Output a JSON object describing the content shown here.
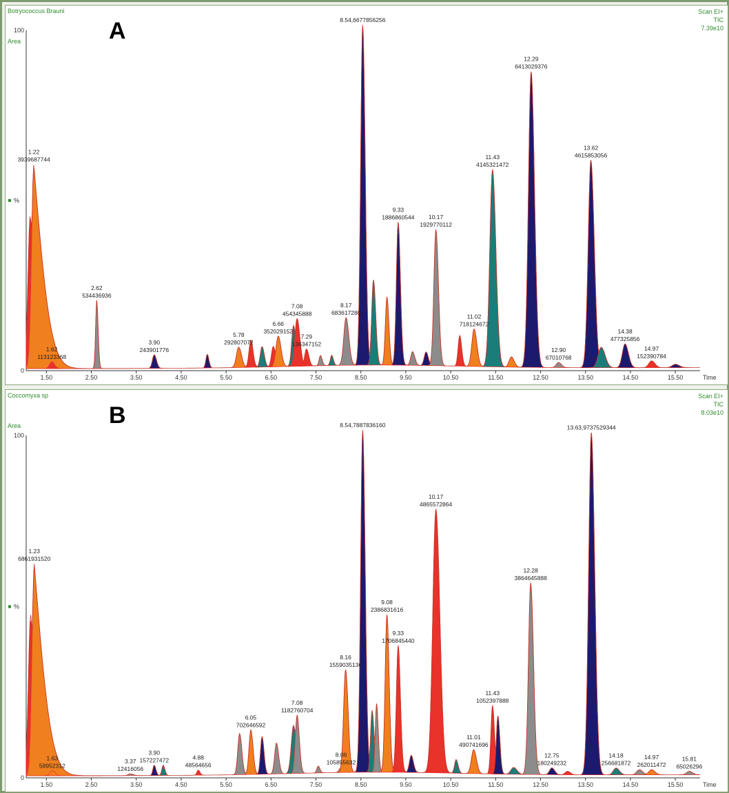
{
  "chart_data": [
    {
      "type": "chromatogram",
      "panel_letter": "A",
      "sample": "Botryococcus Brauni",
      "area_label": "Area",
      "scan_mode": "Scan EI+",
      "trace": "TIC",
      "max_intensity": "7.39e10",
      "xlabel": "Time",
      "ylabel": "%",
      "ytick_top": "100",
      "ytick_bottom": "0",
      "xlim": [
        1.05,
        16.05
      ],
      "ylim": [
        0,
        100
      ],
      "xticks": [
        "1.50",
        "2.50",
        "3.50",
        "4.50",
        "5.50",
        "6.50",
        "7.50",
        "8.50",
        "9.50",
        "10.50",
        "11.50",
        "12.50",
        "13.50",
        "14.50",
        "15.50"
      ],
      "peaks": [
        {
          "rt": 1.14,
          "h": 45,
          "w": 0.05,
          "color": "#e8322a",
          "tail": 0.35
        },
        {
          "rt": 1.22,
          "h": 60,
          "w": 0.05,
          "color": "#f07f1e",
          "tail": 0.38,
          "labels": [
            "1.22",
            "3939687744"
          ]
        },
        {
          "rt": 1.62,
          "h": 2,
          "w": 0.05,
          "color": "#e8322a",
          "labels": [
            "1.62",
            "113123368"
          ]
        },
        {
          "rt": 2.62,
          "h": 20,
          "w": 0.025,
          "color": "#8c8c8c",
          "labels": [
            "2.62",
            "534436936"
          ]
        },
        {
          "rt": 3.9,
          "h": 4,
          "w": 0.04,
          "color": "#1c1a6e",
          "labels": [
            "3.90",
            "243901776"
          ]
        },
        {
          "rt": 5.08,
          "h": 4,
          "w": 0.03,
          "color": "#1c1a6e"
        },
        {
          "rt": 5.78,
          "h": 6,
          "w": 0.05,
          "color": "#f07f1e",
          "labels": [
            "5.78",
            "292807072"
          ]
        },
        {
          "rt": 6.05,
          "h": 8,
          "w": 0.04,
          "color": "#e8322a"
        },
        {
          "rt": 6.3,
          "h": 6,
          "w": 0.04,
          "color": "#1a7d7a"
        },
        {
          "rt": 6.55,
          "h": 6,
          "w": 0.04,
          "color": "#e8322a"
        },
        {
          "rt": 6.66,
          "h": 9,
          "w": 0.05,
          "color": "#f07f1e",
          "labels": [
            "6.66",
            "352029152"
          ]
        },
        {
          "rt": 7.0,
          "h": 12,
          "w": 0.04,
          "color": "#1a7d7a"
        },
        {
          "rt": 7.08,
          "h": 14,
          "w": 0.05,
          "color": "#e8322a",
          "labels": [
            "7.08",
            "454345888"
          ]
        },
        {
          "rt": 7.29,
          "h": 5,
          "w": 0.04,
          "color": "#e8322a",
          "labels": [
            "7.29",
            "136347152"
          ]
        },
        {
          "rt": 7.6,
          "h": 3,
          "w": 0.03,
          "color": "#8c8c8c"
        },
        {
          "rt": 7.85,
          "h": 3,
          "w": 0.03,
          "color": "#1a7d7a"
        },
        {
          "rt": 8.17,
          "h": 14,
          "w": 0.05,
          "color": "#8c8c8c",
          "labels": [
            "8.17",
            "683617280"
          ]
        },
        {
          "rt": 8.54,
          "h": 100,
          "w": 0.045,
          "color": "#1c1a6e",
          "labels": [
            "8.54,6677856256"
          ]
        },
        {
          "rt": 8.78,
          "h": 25,
          "w": 0.04,
          "color": "#1a7d7a"
        },
        {
          "rt": 9.08,
          "h": 20,
          "w": 0.035,
          "color": "#f07f1e"
        },
        {
          "rt": 9.33,
          "h": 42,
          "w": 0.04,
          "color": "#1c1a6e",
          "labels": [
            "9.33",
            "1886860544"
          ]
        },
        {
          "rt": 9.65,
          "h": 4,
          "w": 0.04,
          "color": "#8c8c8c"
        },
        {
          "rt": 9.95,
          "h": 4,
          "w": 0.04,
          "color": "#1c1a6e"
        },
        {
          "rt": 10.17,
          "h": 40,
          "w": 0.045,
          "color": "#8c8c8c",
          "labels": [
            "10.17",
            "1929770112"
          ]
        },
        {
          "rt": 10.7,
          "h": 9,
          "w": 0.035,
          "color": "#e8322a"
        },
        {
          "rt": 11.02,
          "h": 11,
          "w": 0.05,
          "color": "#f07f1e",
          "labels": [
            "11.02",
            "718124672"
          ]
        },
        {
          "rt": 11.43,
          "h": 58,
          "w": 0.06,
          "color": "#1a7d7a",
          "labels": [
            "11.43",
            "4145321472"
          ]
        },
        {
          "rt": 11.85,
          "h": 3,
          "w": 0.05,
          "color": "#f07f1e"
        },
        {
          "rt": 12.29,
          "h": 87,
          "w": 0.06,
          "color": "#1c1a6e",
          "labels": [
            "12.29",
            "6413029376"
          ]
        },
        {
          "rt": 12.9,
          "h": 1.5,
          "w": 0.05,
          "color": "#8c8c8c",
          "labels": [
            "12.90",
            "67010768"
          ]
        },
        {
          "rt": 13.62,
          "h": 61,
          "w": 0.06,
          "color": "#1c1a6e",
          "labels": [
            "13.62",
            "4615853056"
          ]
        },
        {
          "rt": 13.85,
          "h": 6,
          "w": 0.07,
          "color": "#1a7d7a"
        },
        {
          "rt": 14.38,
          "h": 7,
          "w": 0.06,
          "color": "#1c1a6e",
          "labels": [
            "14.38",
            "477325856"
          ]
        },
        {
          "rt": 14.97,
          "h": 2,
          "w": 0.06,
          "color": "#e8322a",
          "labels": [
            "14.97",
            "152390784"
          ]
        },
        {
          "rt": 15.5,
          "h": 1,
          "w": 0.07,
          "color": "#1c1a6e"
        }
      ]
    },
    {
      "type": "chromatogram",
      "panel_letter": "B",
      "sample": "Coccomyxa sp",
      "area_label": "Area",
      "scan_mode": "Scan EI+",
      "trace": "TIC",
      "max_intensity": "8.03e10",
      "xlabel": "Time",
      "ylabel": "%",
      "ytick_top": "100",
      "ytick_bottom": "0",
      "xlim": [
        1.05,
        16.05
      ],
      "ylim": [
        0,
        100
      ],
      "xticks": [
        "1.50",
        "2.50",
        "3.50",
        "4.50",
        "5.50",
        "6.50",
        "7.50",
        "8.50",
        "9.50",
        "10.50",
        "11.50",
        "12.50",
        "13.50",
        "14.50",
        "15.50"
      ],
      "peaks": [
        {
          "rt": 1.15,
          "h": 47,
          "w": 0.05,
          "color": "#e8322a",
          "tail": 0.35
        },
        {
          "rt": 1.23,
          "h": 62,
          "w": 0.05,
          "color": "#f07f1e",
          "tail": 0.38,
          "labels": [
            "1.23",
            "6861931520"
          ]
        },
        {
          "rt": 1.63,
          "h": 1.5,
          "w": 0.05,
          "color": "#f07f1e",
          "labels": [
            "1.63",
            "58952312"
          ]
        },
        {
          "rt": 3.37,
          "h": 0.5,
          "w": 0.05,
          "color": "#8c8c8c",
          "labels": [
            "3.37",
            "12416056"
          ]
        },
        {
          "rt": 3.9,
          "h": 3,
          "w": 0.03,
          "color": "#1c1a6e",
          "labels": [
            "3.90",
            "157227472"
          ]
        },
        {
          "rt": 4.1,
          "h": 3,
          "w": 0.03,
          "color": "#1a7d7a"
        },
        {
          "rt": 4.88,
          "h": 1.5,
          "w": 0.03,
          "color": "#e8322a",
          "labels": [
            "4.88",
            "48564656"
          ]
        },
        {
          "rt": 5.8,
          "h": 12,
          "w": 0.04,
          "color": "#8c8c8c"
        },
        {
          "rt": 6.05,
          "h": 13,
          "w": 0.04,
          "color": "#f07f1e",
          "labels": [
            "6.05",
            "702646592"
          ]
        },
        {
          "rt": 6.3,
          "h": 11,
          "w": 0.035,
          "color": "#1c1a6e"
        },
        {
          "rt": 6.62,
          "h": 9,
          "w": 0.04,
          "color": "#8c8c8c"
        },
        {
          "rt": 7.0,
          "h": 14,
          "w": 0.05,
          "color": "#1a7d7a"
        },
        {
          "rt": 7.08,
          "h": 17,
          "w": 0.04,
          "color": "#8c8c8c",
          "labels": [
            "7.08",
            "1182760704"
          ]
        },
        {
          "rt": 7.55,
          "h": 2,
          "w": 0.03,
          "color": "#8c8c8c"
        },
        {
          "rt": 8.06,
          "h": 1.5,
          "w": 0.04,
          "color": "#8c8c8c",
          "labels": [
            "8.06",
            "105855632"
          ]
        },
        {
          "rt": 8.16,
          "h": 30,
          "w": 0.045,
          "color": "#f07f1e",
          "labels": [
            "8.16",
            "1559035136"
          ]
        },
        {
          "rt": 8.54,
          "h": 100,
          "w": 0.045,
          "color": "#1c1a6e",
          "labels": [
            "8.54,7887836160"
          ]
        },
        {
          "rt": 8.75,
          "h": 18,
          "w": 0.035,
          "color": "#1a7d7a"
        },
        {
          "rt": 8.85,
          "h": 20,
          "w": 0.03,
          "color": "#8c8c8c"
        },
        {
          "rt": 9.08,
          "h": 46,
          "w": 0.04,
          "color": "#f07f1e",
          "labels": [
            "9.08",
            "2386831616"
          ]
        },
        {
          "rt": 9.33,
          "h": 37,
          "w": 0.04,
          "color": "#e8322a",
          "labels": [
            "9.33",
            "1706845440"
          ]
        },
        {
          "rt": 9.62,
          "h": 5,
          "w": 0.04,
          "color": "#1c1a6e"
        },
        {
          "rt": 10.17,
          "h": 77,
          "w": 0.07,
          "color": "#e8322a",
          "labels": [
            "10.17",
            "4865572864"
          ]
        },
        {
          "rt": 10.62,
          "h": 4,
          "w": 0.035,
          "color": "#1a7d7a"
        },
        {
          "rt": 11.01,
          "h": 7,
          "w": 0.05,
          "color": "#f07f1e",
          "labels": [
            "11.01",
            "490741696"
          ]
        },
        {
          "rt": 11.43,
          "h": 20,
          "w": 0.035,
          "color": "#e8322a",
          "labels": [
            "11.43",
            "1052397888"
          ]
        },
        {
          "rt": 11.55,
          "h": 17,
          "w": 0.035,
          "color": "#1c1a6e"
        },
        {
          "rt": 11.9,
          "h": 2,
          "w": 0.06,
          "color": "#1a7d7a"
        },
        {
          "rt": 12.28,
          "h": 56,
          "w": 0.05,
          "color": "#8c8c8c",
          "labels": [
            "12.28",
            "3864645888"
          ]
        },
        {
          "rt": 12.75,
          "h": 2,
          "w": 0.05,
          "color": "#1c1a6e",
          "labels": [
            "12.75",
            "180249232"
          ]
        },
        {
          "rt": 13.1,
          "h": 1,
          "w": 0.05,
          "color": "#e8322a"
        },
        {
          "rt": 13.63,
          "h": 100,
          "w": 0.06,
          "color": "#1c1a6e",
          "labels": [
            "13.63,9737529344"
          ]
        },
        {
          "rt": 14.18,
          "h": 2,
          "w": 0.06,
          "color": "#1a7d7a",
          "labels": [
            "14.18",
            "256681872"
          ]
        },
        {
          "rt": 14.7,
          "h": 1.5,
          "w": 0.06,
          "color": "#8c8c8c"
        },
        {
          "rt": 14.97,
          "h": 1.5,
          "w": 0.06,
          "color": "#f07f1e",
          "labels": [
            "14.97",
            "262011472"
          ]
        },
        {
          "rt": 15.81,
          "h": 1,
          "w": 0.06,
          "color": "#8c8c8c",
          "labels": [
            "15.81",
            "65026296"
          ]
        }
      ]
    }
  ]
}
